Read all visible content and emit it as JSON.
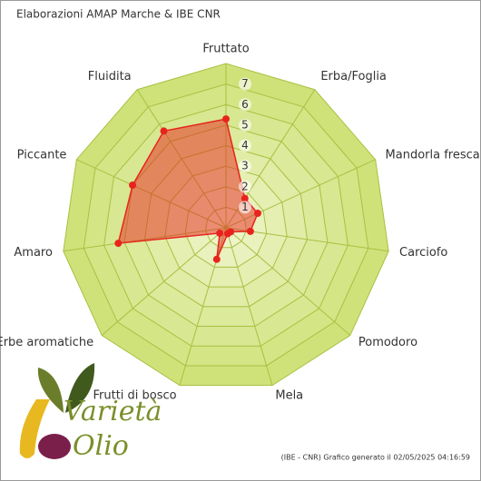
{
  "chart_data": {
    "type": "radar",
    "title": "Elaborazioni AMAP Marche & IBE CNR",
    "footer": "(IBE - CNR) Grafico generato il 02/05/2025 04:16:59",
    "logo": [
      "Varietà",
      "Olio"
    ],
    "categories": [
      "Fruttato",
      "Erba/Foglia",
      "Mandorla fresca",
      "Carciofo",
      "Pomodoro",
      "Mela",
      "Frutti di bosco",
      "Erbe aromatiche",
      "Amaro",
      "Piccante",
      "Fluidita"
    ],
    "values": [
      5.3,
      1.7,
      1.7,
      1.2,
      0.3,
      0.3,
      1.6,
      0.4,
      5.3,
      5.0,
      5.6
    ],
    "color": "#e8231e",
    "ylim": [
      0,
      8
    ],
    "yticks": [
      1,
      2,
      3,
      4,
      5,
      6,
      7
    ],
    "grid": true
  }
}
